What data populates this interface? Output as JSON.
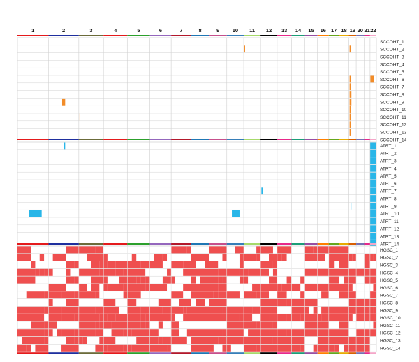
{
  "chart_data": {
    "type": "heatmap",
    "title": "",
    "xlabel": "",
    "ylabel": "",
    "chromosomes": [
      "1",
      "2",
      "3",
      "4",
      "5",
      "6",
      "7",
      "8",
      "9",
      "10",
      "11",
      "12",
      "13",
      "14",
      "15",
      "16",
      "17",
      "18",
      "19",
      "20",
      "21",
      "22"
    ],
    "chromosome_rel_sizes": [
      249,
      243,
      198,
      191,
      181,
      171,
      159,
      146,
      141,
      136,
      135,
      133,
      115,
      107,
      102,
      90,
      83,
      78,
      59,
      64,
      47,
      51
    ],
    "chromosome_colors": [
      "#e41a1c",
      "#1f2f9e",
      "#6b6b3a",
      "#e41a1c",
      "#2ca02c",
      "#9467bd",
      "#b2182b",
      "#1f77b4",
      "#c6508c",
      "#377eb8",
      "#a6d96a",
      "#000000",
      "#e7298a",
      "#1b9e77",
      "#984ea3",
      "#ff7f00",
      "#66a61e",
      "#e6ab02",
      "#d95f02",
      "#7570b3",
      "#e7298a",
      "#f4a6c8"
    ],
    "groups": [
      {
        "name": "SCCOHT",
        "color": "#f28c28",
        "samples": [
          "SCCOHT_1",
          "SCCOHT_2",
          "SCCOHT_3",
          "SCCOHT_4",
          "SCCOHT_5",
          "SCCOHT_6",
          "SCCOHT_7",
          "SCCOHT_8",
          "SCCOHT_9",
          "SCCOHT_10",
          "SCCOHT_11",
          "SCCOHT_12",
          "SCCOHT_13",
          "SCCOHT_14"
        ],
        "events": [
          {
            "sample": 2,
            "chrom": "11",
            "start": 0.0,
            "end": 0.08
          },
          {
            "sample": 2,
            "chrom": "19",
            "start": 0.1,
            "end": 0.25
          },
          {
            "sample": 6,
            "chrom": "19",
            "start": 0.1,
            "end": 0.25
          },
          {
            "sample": 6,
            "chrom": "22",
            "start": 0.05,
            "end": 0.65
          },
          {
            "sample": 7,
            "chrom": "19",
            "start": 0.1,
            "end": 0.25
          },
          {
            "sample": 8,
            "chrom": "19",
            "start": 0.1,
            "end": 0.35
          },
          {
            "sample": 9,
            "chrom": "2",
            "start": 0.45,
            "end": 0.55
          },
          {
            "sample": 9,
            "chrom": "19",
            "start": 0.1,
            "end": 0.35
          },
          {
            "sample": 10,
            "chrom": "19",
            "start": 0.1,
            "end": 0.25
          },
          {
            "sample": 11,
            "chrom": "3",
            "start": 0.03,
            "end": 0.06
          },
          {
            "sample": 11,
            "chrom": "19",
            "start": 0.1,
            "end": 0.25
          },
          {
            "sample": 12,
            "chrom": "19",
            "start": 0.1,
            "end": 0.25
          },
          {
            "sample": 13,
            "chrom": "19",
            "start": 0.1,
            "end": 0.25
          }
        ]
      },
      {
        "name": "ATRT",
        "color": "#29b6e8",
        "samples": [
          "ATRT_1",
          "ATRT_2",
          "ATRT_3",
          "ATRT_4",
          "ATRT_5",
          "ATRT_6",
          "ATRT_7",
          "ATRT_8",
          "ATRT_9",
          "ATRT_10",
          "ATRT_11",
          "ATRT_12",
          "ATRT_13",
          "ATRT_14"
        ],
        "events": [
          {
            "sample": 1,
            "chrom": "2",
            "start": 0.5,
            "end": 0.55
          },
          {
            "sample": 1,
            "chrom": "22",
            "start": 0.0,
            "end": 1.0
          },
          {
            "sample": 2,
            "chrom": "22",
            "start": 0.0,
            "end": 1.0
          },
          {
            "sample": 3,
            "chrom": "22",
            "start": 0.0,
            "end": 1.0
          },
          {
            "sample": 4,
            "chrom": "22",
            "start": 0.0,
            "end": 1.0
          },
          {
            "sample": 5,
            "chrom": "22",
            "start": 0.0,
            "end": 1.0
          },
          {
            "sample": 6,
            "chrom": "22",
            "start": 0.0,
            "end": 1.0
          },
          {
            "sample": 7,
            "chrom": "12",
            "start": 0.05,
            "end": 0.12
          },
          {
            "sample": 7,
            "chrom": "22",
            "start": 0.0,
            "end": 1.0
          },
          {
            "sample": 8,
            "chrom": "22",
            "start": 0.0,
            "end": 1.0
          },
          {
            "sample": 9,
            "chrom": "19",
            "start": 0.25,
            "end": 0.3
          },
          {
            "sample": 9,
            "chrom": "22",
            "start": 0.0,
            "end": 1.0
          },
          {
            "sample": 10,
            "chrom": "1",
            "start": 0.38,
            "end": 0.78
          },
          {
            "sample": 10,
            "chrom": "10",
            "start": 0.3,
            "end": 0.75
          },
          {
            "sample": 10,
            "chrom": "22",
            "start": 0.0,
            "end": 1.0
          },
          {
            "sample": 11,
            "chrom": "22",
            "start": 0.0,
            "end": 1.0
          },
          {
            "sample": 12,
            "chrom": "22",
            "start": 0.0,
            "end": 1.0
          },
          {
            "sample": 13,
            "chrom": "22",
            "start": 0.0,
            "end": 1.0
          },
          {
            "sample": 14,
            "chrom": "22",
            "start": 0.0,
            "end": 1.0
          }
        ]
      },
      {
        "name": "HGSC",
        "color": "#ef4f4f",
        "samples": [
          "HGSC_1",
          "HGSC_2",
          "HGSC_3",
          "HGSC_4",
          "HGSC_5",
          "HGSC_6",
          "HGSC_7",
          "HGSC_8",
          "HGSC_9",
          "HGSC_10",
          "HGSC_11",
          "HGSC_12",
          "HGSC_13",
          "HGSC_14"
        ],
        "density": [
          0.35,
          0.6,
          0.65,
          0.72,
          0.5,
          0.55,
          0.6,
          0.5,
          0.85,
          0.8,
          0.6,
          0.82,
          0.75,
          0.7
        ]
      }
    ],
    "grid": true,
    "legend": "none"
  }
}
